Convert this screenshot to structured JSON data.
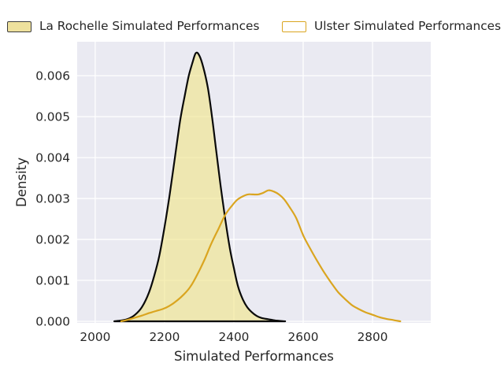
{
  "figure": {
    "background": "#ffffff",
    "plot_background": "#eaeaf2",
    "grid_color": "#ffffff",
    "text_color": "#262626"
  },
  "legend": {
    "entries": [
      {
        "label": "La Rochelle Simulated Performances",
        "swatch_fill": "#eee19d",
        "swatch_border": "#3c3c3c"
      },
      {
        "label": "Ulster Simulated Performances",
        "swatch_fill": "#ffffff",
        "swatch_border": "#daa520"
      }
    ]
  },
  "chart_data": {
    "type": "area",
    "title": "",
    "xlabel": "Simulated Performances",
    "ylabel": "Density",
    "xlim": [
      1948,
      2968
    ],
    "ylim": [
      0,
      0.00683
    ],
    "grid": true,
    "legend_position": "top",
    "x_tick_values": [
      2000,
      2200,
      2400,
      2600,
      2800
    ],
    "x_tick_labels": [
      "2000",
      "2200",
      "2400",
      "2600",
      "2800"
    ],
    "y_tick_values": [
      0,
      0.001,
      0.002,
      0.003,
      0.004,
      0.005,
      0.006
    ],
    "y_tick_labels": [
      "0.000",
      "0.001",
      "0.002",
      "0.003",
      "0.004",
      "0.005",
      "0.006"
    ],
    "series": [
      {
        "name": "La Rochelle Simulated Performances",
        "style": "filled",
        "line_color": "#0a0a0a",
        "fill_color": "rgba(240,230,140,0.63)",
        "peak": {
          "x": 2290,
          "density": 0.00655
        },
        "points": [
          [
            2055,
            0
          ],
          [
            2075,
            2e-05
          ],
          [
            2095,
            6e-05
          ],
          [
            2115,
            0.00016
          ],
          [
            2135,
            0.00035
          ],
          [
            2155,
            0.0007
          ],
          [
            2170,
            0.0011
          ],
          [
            2185,
            0.0016
          ],
          [
            2200,
            0.0023
          ],
          [
            2215,
            0.0031
          ],
          [
            2230,
            0.004
          ],
          [
            2245,
            0.0049
          ],
          [
            2258,
            0.0055
          ],
          [
            2270,
            0.006
          ],
          [
            2280,
            0.0063
          ],
          [
            2290,
            0.00655
          ],
          [
            2300,
            0.0065
          ],
          [
            2312,
            0.0062
          ],
          [
            2325,
            0.0057
          ],
          [
            2337,
            0.005
          ],
          [
            2350,
            0.0041
          ],
          [
            2362,
            0.0033
          ],
          [
            2375,
            0.0025
          ],
          [
            2388,
            0.0018
          ],
          [
            2400,
            0.0013
          ],
          [
            2412,
            0.00085
          ],
          [
            2425,
            0.00055
          ],
          [
            2438,
            0.00035
          ],
          [
            2452,
            0.00022
          ],
          [
            2466,
            0.00013
          ],
          [
            2480,
            8e-05
          ],
          [
            2500,
            5e-05
          ],
          [
            2520,
            2e-05
          ],
          [
            2548,
            0
          ]
        ]
      },
      {
        "name": "Ulster Simulated Performances",
        "style": "line",
        "line_color": "#daa520",
        "peak": {
          "x": 2500,
          "density": 0.0032
        },
        "points": [
          [
            2075,
            0
          ],
          [
            2095,
            4e-05
          ],
          [
            2115,
            9e-05
          ],
          [
            2135,
            0.00014
          ],
          [
            2155,
            0.0002
          ],
          [
            2175,
            0.00025
          ],
          [
            2195,
            0.0003
          ],
          [
            2215,
            0.00038
          ],
          [
            2235,
            0.0005
          ],
          [
            2255,
            0.00065
          ],
          [
            2275,
            0.00085
          ],
          [
            2295,
            0.00115
          ],
          [
            2315,
            0.0015
          ],
          [
            2335,
            0.0019
          ],
          [
            2355,
            0.00225
          ],
          [
            2375,
            0.0026
          ],
          [
            2395,
            0.00283
          ],
          [
            2410,
            0.00297
          ],
          [
            2425,
            0.00305
          ],
          [
            2440,
            0.0031
          ],
          [
            2455,
            0.0031
          ],
          [
            2470,
            0.0031
          ],
          [
            2485,
            0.00314
          ],
          [
            2500,
            0.0032
          ],
          [
            2515,
            0.00317
          ],
          [
            2530,
            0.0031
          ],
          [
            2545,
            0.00298
          ],
          [
            2560,
            0.0028
          ],
          [
            2580,
            0.00252
          ],
          [
            2600,
            0.0021
          ],
          [
            2620,
            0.00178
          ],
          [
            2640,
            0.00148
          ],
          [
            2660,
            0.0012
          ],
          [
            2680,
            0.00095
          ],
          [
            2700,
            0.00072
          ],
          [
            2720,
            0.00055
          ],
          [
            2740,
            0.0004
          ],
          [
            2760,
            0.0003
          ],
          [
            2780,
            0.00022
          ],
          [
            2800,
            0.00016
          ],
          [
            2820,
            0.0001
          ],
          [
            2840,
            6e-05
          ],
          [
            2860,
            3e-05
          ],
          [
            2880,
            0
          ]
        ]
      }
    ]
  }
}
